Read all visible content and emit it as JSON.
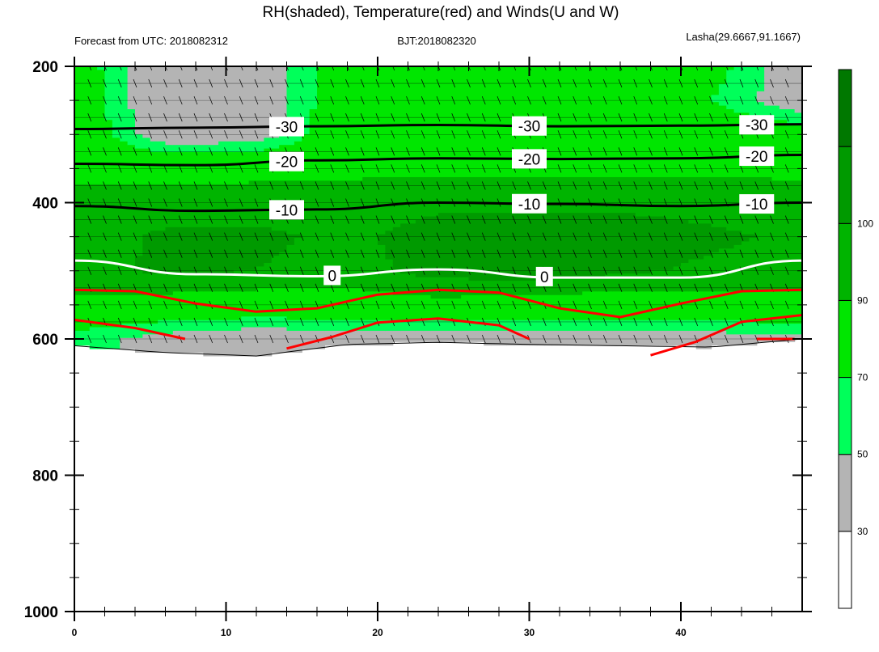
{
  "chart_data": {
    "type": "heatmap",
    "title": "RH(shaded), Temperature(red) and Winds(U and W)",
    "subtitle_left": "Forecast from UTC: 2018082312",
    "subtitle_center": "BJT:2018082320",
    "subtitle_right": "Lasha(29.6667,91.1667)",
    "xlim": [
      0,
      48
    ],
    "ylim": [
      1000,
      200
    ],
    "y_scale": "linear",
    "x_ticks": [
      0,
      10,
      20,
      30,
      40
    ],
    "y_ticks": [
      200,
      400,
      600,
      800,
      1000
    ],
    "grid": false,
    "colorbar": {
      "placement": "right",
      "levels": [
        30,
        50,
        70,
        90,
        100
      ],
      "tick_labels": [
        "30",
        "50",
        "70",
        "90",
        "100"
      ],
      "colors": [
        "#ffffff",
        "#b4b4b4",
        "#00ff5a",
        "#00e600",
        "#00b400",
        "#009a00",
        "#007800"
      ]
    },
    "rh_field": {
      "x": [
        0,
        6,
        12,
        18,
        24,
        30,
        36,
        42,
        48
      ],
      "p": [
        200,
        250,
        300,
        350,
        400,
        450,
        500,
        550,
        600
      ],
      "rh": [
        [
          70,
          35,
          40,
          72,
          74,
          72,
          70,
          66,
          40
        ],
        [
          72,
          35,
          38,
          72,
          74,
          73,
          70,
          60,
          40
        ],
        [
          74,
          40,
          42,
          74,
          75,
          74,
          72,
          72,
          70
        ],
        [
          78,
          76,
          76,
          78,
          78,
          78,
          78,
          78,
          78
        ],
        [
          82,
          84,
          86,
          84,
          88,
          88,
          88,
          86,
          84
        ],
        [
          84,
          92,
          92,
          88,
          94,
          95,
          95,
          92,
          88
        ],
        [
          86,
          92,
          90,
          86,
          94,
          96,
          92,
          88,
          86
        ],
        [
          78,
          74,
          72,
          74,
          76,
          74,
          72,
          74,
          76
        ],
        [
          55,
          45,
          40,
          42,
          44,
          42,
          42,
          44,
          46
        ]
      ],
      "surface_p": [
        610,
        620,
        625,
        608,
        605,
        608,
        610,
        612,
        600
      ]
    },
    "temperature_contours": [
      {
        "label": "-30",
        "x": [
          0,
          8,
          16,
          24,
          32,
          40,
          48
        ],
        "p": [
          292,
          290,
          288,
          286,
          288,
          287,
          285
        ]
      },
      {
        "label": "-20",
        "x": [
          0,
          8,
          16,
          24,
          32,
          40,
          48
        ],
        "p": [
          343,
          345,
          338,
          335,
          336,
          335,
          330
        ]
      },
      {
        "label": "-10",
        "x": [
          0,
          8,
          16,
          24,
          32,
          40,
          48
        ],
        "p": [
          405,
          412,
          410,
          400,
          402,
          405,
          400
        ]
      },
      {
        "label": "0",
        "x": [
          0,
          8,
          16,
          24,
          32,
          40,
          48
        ],
        "p": [
          485,
          505,
          508,
          498,
          510,
          510,
          485
        ]
      }
    ],
    "temperature_red_lines": [
      {
        "x": [
          0,
          4,
          8,
          12,
          16,
          20,
          24,
          28,
          32,
          36,
          40,
          44,
          48
        ],
        "p": [
          528,
          530,
          548,
          560,
          555,
          535,
          528,
          532,
          555,
          568,
          548,
          530,
          528
        ]
      },
      {
        "x": [
          0,
          4,
          7.3
        ],
        "p": [
          572,
          584,
          600
        ]
      },
      {
        "x": [
          14,
          17,
          20,
          24,
          28,
          30
        ],
        "p": [
          614,
          597,
          576,
          570,
          580,
          600
        ]
      },
      {
        "x": [
          38,
          41,
          44,
          48
        ],
        "p": [
          624,
          604,
          575,
          565
        ]
      },
      {
        "x": [
          45,
          47.5
        ],
        "p": [
          600,
          600
        ]
      }
    ],
    "wind_field": "short barbs on pressure levels every 25 hPa from 200 to 600 hPa"
  }
}
